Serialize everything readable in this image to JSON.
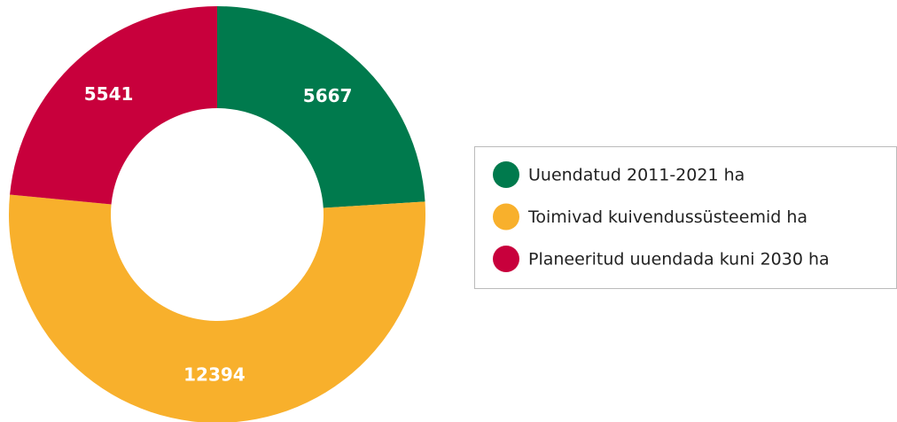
{
  "chart_data": {
    "type": "donut",
    "categories": [
      "Uuendatud 2011-2021 ha",
      "Toimivad kuivendussüsteemid ha",
      "Planeeritud uuendada kuni 2030 ha"
    ],
    "values": [
      5667,
      12394,
      5541
    ],
    "colors": [
      "#007a4d",
      "#f8b02c",
      "#c8003c"
    ],
    "legend": "right"
  }
}
